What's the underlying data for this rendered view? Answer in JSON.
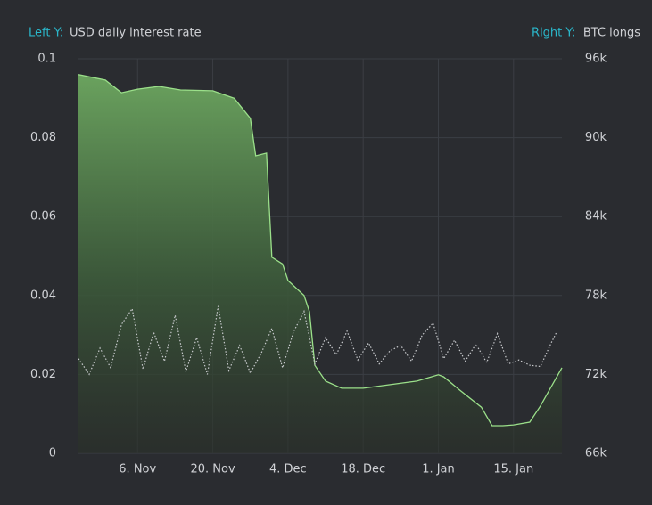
{
  "chart_data": {
    "type": "line",
    "y_title": {
      "key": "Left Y:",
      "text": "USD daily interest rate"
    },
    "y2_title": {
      "key": "Right Y:",
      "text": "BTC longs"
    },
    "key_color": "#2ab7ca",
    "grid": true,
    "xlim": [
      "10-26",
      "01-24"
    ],
    "xticks": [
      {
        "value": "11-06",
        "label": "6. Nov"
      },
      {
        "value": "11-20",
        "label": "20. Nov"
      },
      {
        "value": "12-04",
        "label": "4. Dec"
      },
      {
        "value": "12-18",
        "label": "18. Dec"
      },
      {
        "value": "01-01",
        "label": "1. Jan"
      },
      {
        "value": "01-15",
        "label": "15. Jan"
      }
    ],
    "ylim": [
      0,
      0.1
    ],
    "yticks": [
      0,
      0.02,
      0.04,
      0.06,
      0.08,
      0.1
    ],
    "y2lim": [
      66000,
      96000
    ],
    "y2ticks": [
      {
        "value": 66000,
        "label": "66k"
      },
      {
        "value": 72000,
        "label": "72k"
      },
      {
        "value": 78000,
        "label": "78k"
      },
      {
        "value": 84000,
        "label": "84k"
      },
      {
        "value": 90000,
        "label": "90k"
      },
      {
        "value": 96000,
        "label": "96k"
      }
    ],
    "series": [
      {
        "name": "USD daily interest rate",
        "color": "#9be08a",
        "style": "area",
        "x": [
          "10-26",
          "10-31",
          "11-03",
          "11-06",
          "11-10",
          "11-14",
          "11-20",
          "11-24",
          "11-27",
          "11-28",
          "11-30",
          "12-01",
          "12-03",
          "12-04",
          "12-07",
          "12-08",
          "12-09",
          "12-11",
          "12-14",
          "12-18",
          "12-23",
          "12-28",
          "01-01",
          "01-02",
          "01-05",
          "01-09",
          "01-11",
          "01-13",
          "01-15",
          "01-18",
          "01-20",
          "01-24"
        ],
        "values": [
          0.096,
          0.0946,
          0.0914,
          0.0923,
          0.093,
          0.0921,
          0.0919,
          0.09,
          0.0849,
          0.0754,
          0.0761,
          0.0497,
          0.048,
          0.0438,
          0.04,
          0.0359,
          0.0223,
          0.0183,
          0.0165,
          0.0165,
          0.0174,
          0.0183,
          0.0199,
          0.0194,
          0.016,
          0.0117,
          0.007,
          0.007,
          0.0072,
          0.0079,
          0.012,
          0.0217
        ]
      },
      {
        "name": "BTC longs",
        "color": "#c8cacd",
        "style": "dotted",
        "axis": "y2",
        "x": [
          "10-26",
          "10-28",
          "10-30",
          "11-01",
          "11-03",
          "11-05",
          "11-07",
          "11-09",
          "11-11",
          "11-13",
          "11-15",
          "11-17",
          "11-19",
          "11-21",
          "11-23",
          "11-25",
          "11-27",
          "11-29",
          "12-01",
          "12-03",
          "12-05",
          "12-07",
          "12-09",
          "12-11",
          "12-13",
          "12-15",
          "12-17",
          "12-19",
          "12-21",
          "12-23",
          "12-25",
          "12-27",
          "12-29",
          "12-31",
          "01-02",
          "01-04",
          "01-06",
          "01-08",
          "01-10",
          "01-12",
          "01-14",
          "01-16",
          "01-18",
          "01-20",
          "01-22",
          "01-23"
        ],
        "values": [
          73200,
          72000,
          74000,
          72500,
          75800,
          77000,
          72400,
          75200,
          73000,
          76500,
          72200,
          74800,
          72000,
          77200,
          72300,
          74200,
          72100,
          73600,
          75500,
          72500,
          75200,
          76800,
          72800,
          74800,
          73500,
          75300,
          73100,
          74400,
          72800,
          73800,
          74200,
          73000,
          75000,
          75900,
          73200,
          74600,
          73000,
          74300,
          72900,
          75100,
          72800,
          73100,
          72700,
          72600,
          74400,
          75200
        ]
      }
    ]
  }
}
